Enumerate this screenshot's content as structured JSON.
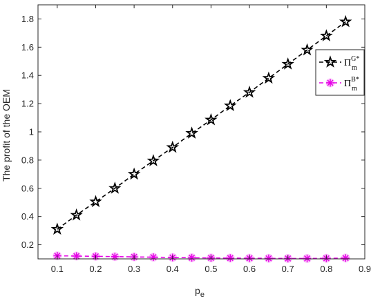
{
  "chart_data": {
    "type": "line",
    "title": "",
    "xlabel": "p",
    "xlabel_sub": "e",
    "ylabel": "The profit of the OEM",
    "xlim": [
      0.05,
      0.9
    ],
    "ylim": [
      0.1,
      1.9
    ],
    "xticks": [
      0.1,
      0.2,
      0.3,
      0.4,
      0.5,
      0.6,
      0.7,
      0.8,
      0.9
    ],
    "yticks": [
      0.2,
      0.4,
      0.6,
      0.8,
      1,
      1.2,
      1.4,
      1.6,
      1.8
    ],
    "grid": false,
    "legend_position": "right-upper",
    "x": [
      0.1,
      0.15,
      0.2,
      0.25,
      0.3,
      0.35,
      0.4,
      0.45,
      0.5,
      0.55,
      0.6,
      0.65,
      0.7,
      0.75,
      0.8,
      0.85
    ],
    "series": [
      {
        "name": "Π",
        "name_sub": "m",
        "name_sup": "G*",
        "color": "#000000",
        "marker": "pentagram",
        "line_style": "dashed",
        "values": [
          0.31,
          0.41,
          0.505,
          0.6,
          0.7,
          0.795,
          0.89,
          0.99,
          1.085,
          1.185,
          1.28,
          1.38,
          1.48,
          1.58,
          1.68,
          1.78
        ]
      },
      {
        "name": "Π",
        "name_sub": "m",
        "name_sup": "B*",
        "color": "#e600e6",
        "marker": "asterisk",
        "line_style": "dashed",
        "values": [
          0.122,
          0.12,
          0.118,
          0.116,
          0.114,
          0.112,
          0.11,
          0.108,
          0.107,
          0.106,
          0.105,
          0.104,
          0.103,
          0.103,
          0.104,
          0.106
        ]
      }
    ]
  }
}
